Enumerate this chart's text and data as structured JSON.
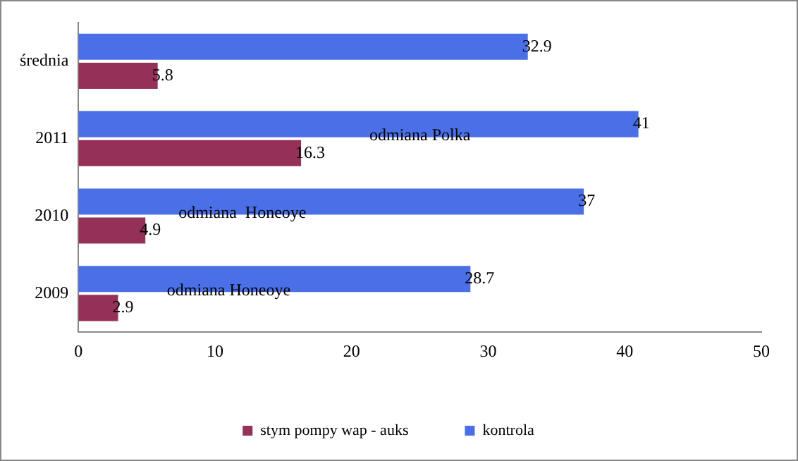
{
  "chart_data": {
    "type": "bar",
    "orientation": "horizontal",
    "categories": [
      "średnia",
      "2011",
      "2010",
      "2009"
    ],
    "series": [
      {
        "name": "kontrola",
        "color": "#4a6fe6",
        "values": [
          32.9,
          41,
          37,
          28.7
        ]
      },
      {
        "name": "stym pompy wap - auks",
        "color": "#953058",
        "values": [
          5.8,
          16.3,
          4.9,
          2.9
        ]
      }
    ],
    "xlim": [
      0,
      50
    ],
    "xticks": [
      0,
      10,
      20,
      30,
      40,
      50
    ],
    "grid": false,
    "legend": "bottom",
    "data_labels": true,
    "annotations": [
      {
        "text": "odmiana Polka",
        "x": 25,
        "y": "2011"
      },
      {
        "text": "odmiana  Honeoye",
        "x": 12,
        "y": "2010"
      },
      {
        "text": "odmiana Honeoye",
        "x": 11,
        "y": "2009"
      }
    ]
  }
}
